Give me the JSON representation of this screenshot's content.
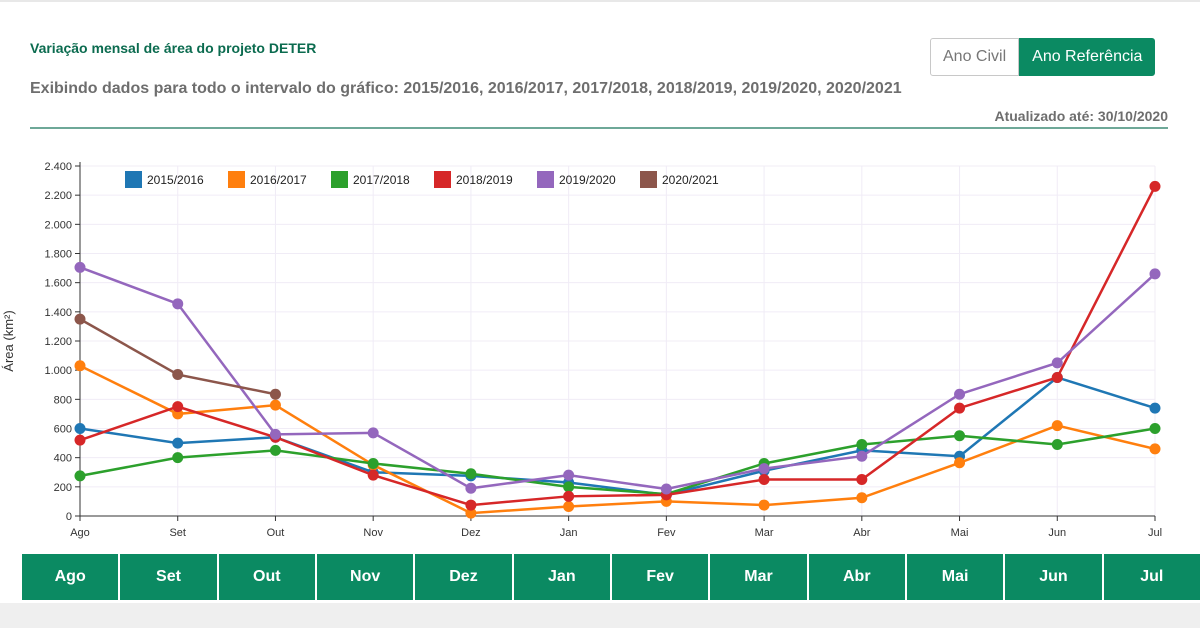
{
  "header": {
    "title": "Variação mensal de área do projeto DETER",
    "subtitle": "Exibindo dados para todo o intervalo do gráfico: 2015/2016, 2016/2017, 2017/2018, 2018/2019, 2019/2020, 2020/2021",
    "updated": "Atualizado até: 30/10/2020"
  },
  "toggle": {
    "civil_label": "Ano Civil",
    "ref_label": "Ano Referência"
  },
  "month_buttons": [
    "Ago",
    "Set",
    "Out",
    "Nov",
    "Dez",
    "Jan",
    "Fev",
    "Mar",
    "Abr",
    "Mai",
    "Jun",
    "Jul"
  ],
  "chart_data": {
    "type": "line",
    "title": "",
    "xlabel": "",
    "ylabel": "Área (km²)",
    "categories": [
      "Ago",
      "Set",
      "Out",
      "Nov",
      "Dez",
      "Jan",
      "Fev",
      "Mar",
      "Abr",
      "Mai",
      "Jun",
      "Jul"
    ],
    "ylim": [
      0,
      2400
    ],
    "yticks": [
      0,
      200,
      400,
      600,
      800,
      1000,
      1200,
      1400,
      1600,
      1800,
      2000,
      2200,
      2400
    ],
    "ytick_labels": [
      "0",
      "200",
      "400",
      "600",
      "800",
      "1.000",
      "1.200",
      "1.400",
      "1.600",
      "1.800",
      "2.000",
      "2.200",
      "2.400"
    ],
    "grid": true,
    "legend_position": "top-left",
    "series": [
      {
        "name": "2015/2016",
        "color": "#1f77b4",
        "values": [
          600,
          500,
          540,
          300,
          275,
          230,
          145,
          310,
          450,
          410,
          950,
          740
        ]
      },
      {
        "name": "2016/2017",
        "color": "#ff7f0e",
        "values": [
          1030,
          700,
          760,
          350,
          20,
          65,
          100,
          75,
          125,
          365,
          620,
          460
        ]
      },
      {
        "name": "2017/2018",
        "color": "#2ca02c",
        "values": [
          275,
          400,
          450,
          360,
          290,
          200,
          150,
          360,
          490,
          550,
          490,
          600
        ]
      },
      {
        "name": "2018/2019",
        "color": "#d62728",
        "values": [
          520,
          750,
          540,
          280,
          75,
          135,
          145,
          250,
          250,
          740,
          950,
          2260
        ]
      },
      {
        "name": "2019/2020",
        "color": "#9467bd",
        "values": [
          1705,
          1455,
          560,
          570,
          190,
          280,
          185,
          325,
          410,
          835,
          1050,
          1660
        ]
      },
      {
        "name": "2020/2021",
        "color": "#8c564b",
        "values": [
          1350,
          970,
          835,
          null,
          null,
          null,
          null,
          null,
          null,
          null,
          null,
          null
        ]
      }
    ]
  }
}
